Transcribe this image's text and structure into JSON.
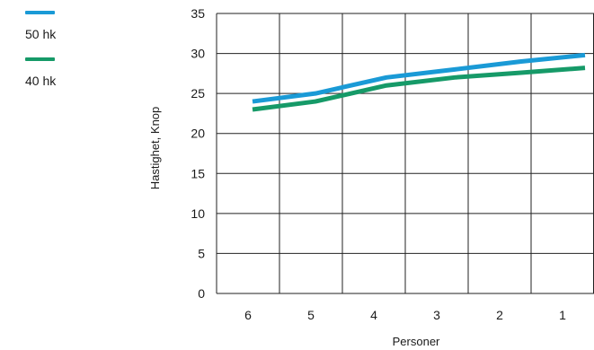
{
  "chart_data": {
    "type": "line",
    "title": "",
    "xlabel": "Personer",
    "ylabel": "Hastighet, Knop",
    "categories": [
      "6",
      "5",
      "4",
      "3",
      "2",
      "1"
    ],
    "ylim": [
      0,
      35
    ],
    "yticks": [
      "0",
      "5",
      "10",
      "15",
      "20",
      "25",
      "30",
      "35"
    ],
    "grid": true,
    "legend_position": "top-left",
    "series": [
      {
        "name": "50 hk",
        "color": "#1a9ad6",
        "values": [
          24,
          25,
          27,
          28,
          29,
          29.8
        ]
      },
      {
        "name": "40 hk",
        "color": "#169a68",
        "values": [
          23,
          24,
          26,
          27,
          27.6,
          28.2
        ]
      }
    ]
  }
}
